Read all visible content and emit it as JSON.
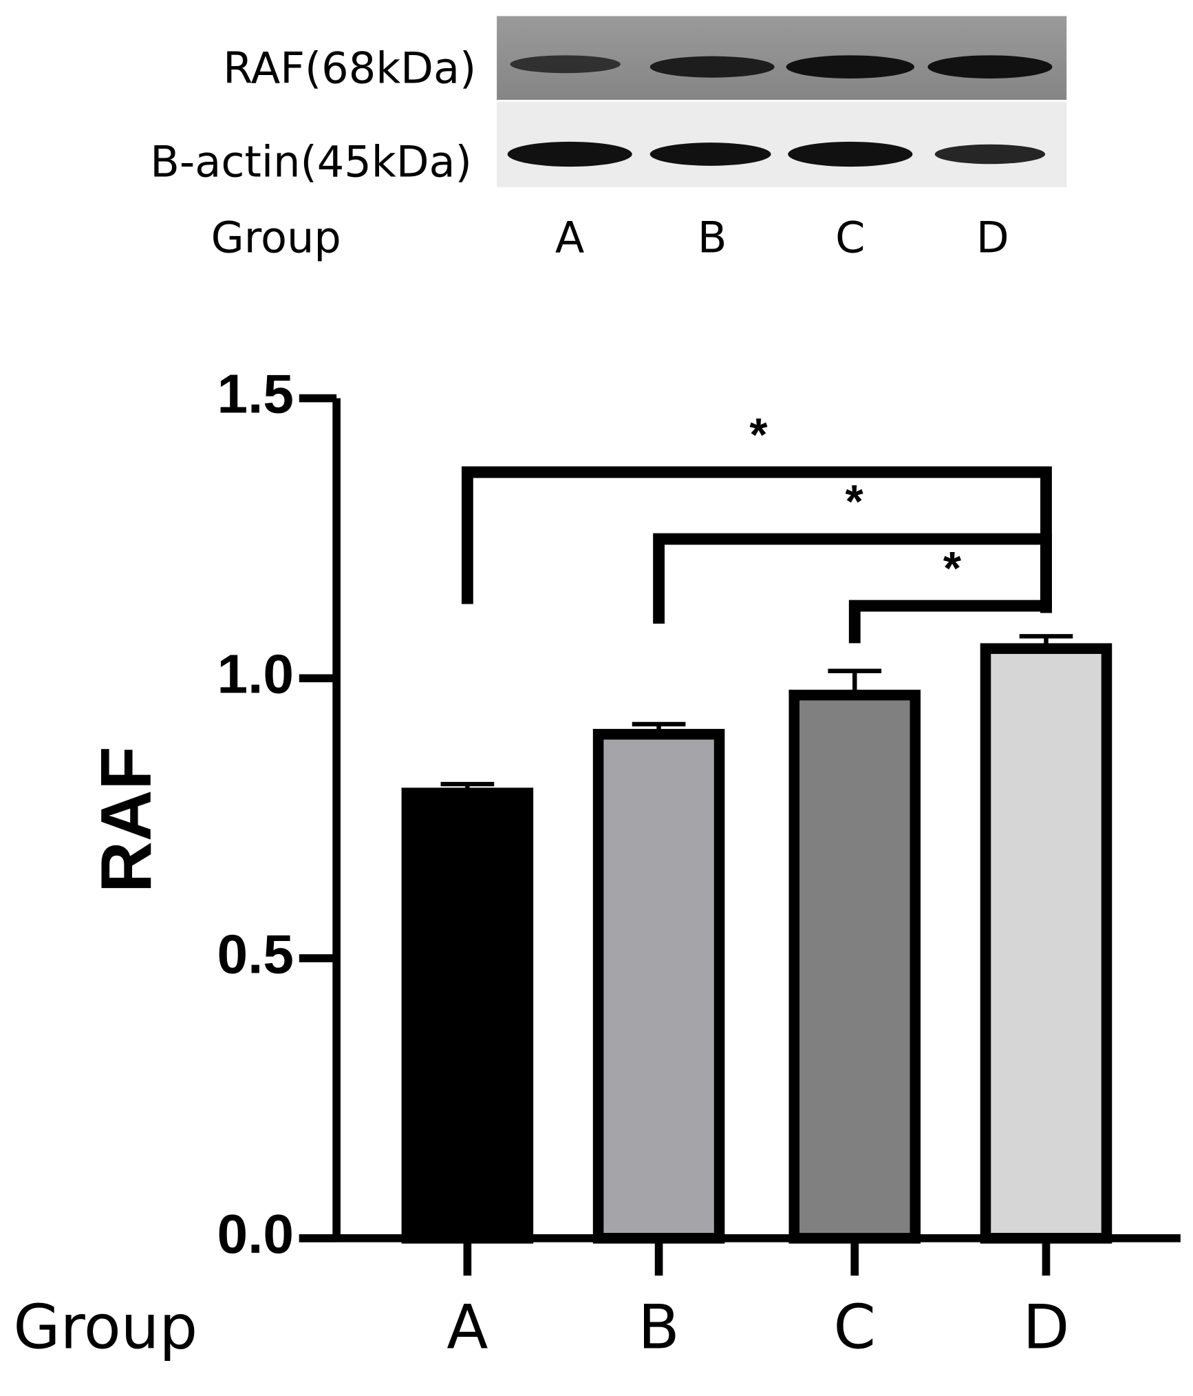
{
  "blot": {
    "rows": [
      "RAF(68kDa)",
      "B-actin(45kDa)"
    ],
    "axis_label": "Group",
    "lanes": [
      "A",
      "B",
      "C",
      "D"
    ]
  },
  "chart_data": {
    "type": "bar",
    "x_label": "Group",
    "y_label": "RAF",
    "categories": [
      "A",
      "B",
      "C",
      "D"
    ],
    "values": [
      0.795,
      0.9,
      0.97,
      1.053
    ],
    "errors": [
      0.016,
      0.018,
      0.043,
      0.022
    ],
    "colors": [
      "#000000",
      "#a5a4a9",
      "#808080",
      "#d6d6d6"
    ],
    "ylim": [
      0,
      1.5
    ],
    "yticks": [
      {
        "value": 0,
        "label": "0.0"
      },
      0.5,
      {
        "value": 1,
        "label": "1.0"
      },
      1.5
    ],
    "annotations": [
      {
        "label": "*",
        "pair": [
          "A",
          "D"
        ]
      },
      {
        "label": "*",
        "pair": [
          "B",
          "D"
        ]
      },
      {
        "label": "*",
        "pair": [
          "C",
          "D"
        ]
      }
    ]
  }
}
